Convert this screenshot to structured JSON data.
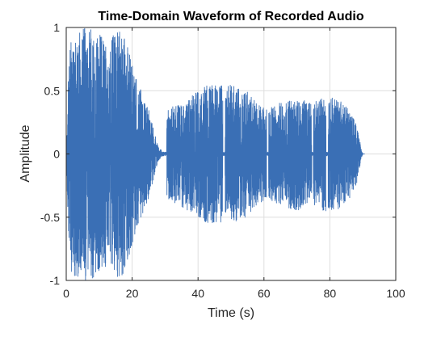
{
  "chart_data": {
    "type": "line",
    "title": "Time-Domain Waveform of Recorded Audio",
    "xlabel": "Time (s)",
    "ylabel": "Amplitude",
    "xlim": [
      0,
      100
    ],
    "ylim": [
      -1,
      1
    ],
    "xticks": [
      0,
      20,
      40,
      60,
      80,
      100
    ],
    "yticks": [
      -1,
      -0.5,
      0,
      0.5,
      1
    ],
    "xtick_labels": [
      "0",
      "20",
      "40",
      "60",
      "80",
      "100"
    ],
    "ytick_labels": [
      "-1",
      "-0.5",
      "0",
      "0.5",
      "1"
    ],
    "grid": true,
    "series": [
      {
        "color": "#3a6fb5",
        "duration": 90,
        "envelope": [
          {
            "t": 0,
            "amp": 0.05
          },
          {
            "t": 1,
            "amp": 0.9
          },
          {
            "t": 3,
            "amp": 1.0
          },
          {
            "t": 8,
            "amp": 1.0
          },
          {
            "t": 12,
            "amp": 0.9
          },
          {
            "t": 17,
            "amp": 1.0
          },
          {
            "t": 22,
            "amp": 0.55
          },
          {
            "t": 25,
            "amp": 0.35
          },
          {
            "t": 28,
            "amp": 0.05
          },
          {
            "t": 29.5,
            "amp": 0.02
          },
          {
            "t": 30.5,
            "amp": 0.35
          },
          {
            "t": 37,
            "amp": 0.45
          },
          {
            "t": 40,
            "amp": 0.5
          },
          {
            "t": 43,
            "amp": 0.55
          },
          {
            "t": 50,
            "amp": 0.55
          },
          {
            "t": 55,
            "amp": 0.5
          },
          {
            "t": 58,
            "amp": 0.4
          },
          {
            "t": 61,
            "amp": 0.35
          },
          {
            "t": 64,
            "amp": 0.4
          },
          {
            "t": 70,
            "amp": 0.45
          },
          {
            "t": 74,
            "amp": 0.4
          },
          {
            "t": 78,
            "amp": 0.45
          },
          {
            "t": 82,
            "amp": 0.45
          },
          {
            "t": 86,
            "amp": 0.35
          },
          {
            "t": 88,
            "amp": 0.25
          },
          {
            "t": 89.5,
            "amp": 0.05
          },
          {
            "t": 90,
            "amp": 0.0
          }
        ],
        "gaps": [
          [
            29,
            30.5
          ],
          [
            47.5,
            48.2
          ],
          [
            60.8,
            61.4
          ],
          [
            74.5,
            75
          ],
          [
            78.8,
            79.5
          ]
        ]
      }
    ]
  }
}
